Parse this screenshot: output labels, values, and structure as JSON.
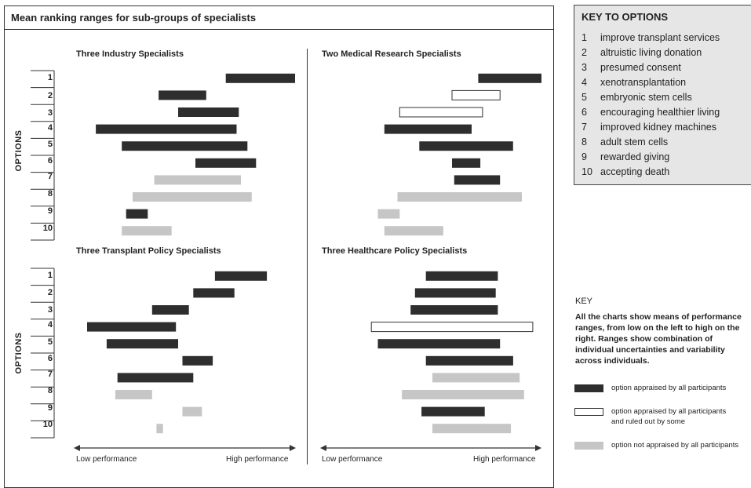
{
  "title": "Mean ranking ranges for sub-groups of specialists",
  "axis": {
    "options_label": "OPTIONS",
    "low": "Low performance",
    "high": "High performance"
  },
  "option_numbers": [
    "1",
    "2",
    "3",
    "4",
    "5",
    "6",
    "7",
    "8",
    "9",
    "10"
  ],
  "key_to_options": {
    "title": "KEY TO OPTIONS",
    "items": [
      {
        "num": "1",
        "label": "improve transplant services"
      },
      {
        "num": "2",
        "label": "altruistic living donation"
      },
      {
        "num": "3",
        "label": "presumed consent"
      },
      {
        "num": "4",
        "label": "xenotransplantation"
      },
      {
        "num": "5",
        "label": "embryonic stem cells"
      },
      {
        "num": "6",
        "label": "encouraging healthier living"
      },
      {
        "num": "7",
        "label": "improved kidney machines"
      },
      {
        "num": "8",
        "label": "adult stem cells"
      },
      {
        "num": "9",
        "label": "rewarded giving"
      },
      {
        "num": "10",
        "label": "accepting death"
      }
    ]
  },
  "legend": {
    "title": "KEY",
    "description": "All the charts show means of performance ranges, from low on the left to high on the right. Ranges show combination of individual uncertainties and variability across individuals.",
    "items": [
      {
        "style": "all",
        "line1": "option appraised by all participants",
        "line2": ""
      },
      {
        "style": "ruled_out",
        "line1": "option appraised by all participants",
        "line2": "and ruled out by some"
      },
      {
        "style": "not_all",
        "line1": "option not appraised by all participants",
        "line2": ""
      }
    ]
  },
  "colors": {
    "all": "#2e2e2e",
    "ruled_out": "#ffffff",
    "not_all": "#c6c6c6",
    "outline": "#333333"
  },
  "chart_data": [
    {
      "type": "range-bar",
      "title": "Three Industry Specialists",
      "x_range": [
        "Low performance",
        "High performance"
      ],
      "scale": [
        0,
        100
      ],
      "categories": [
        "1",
        "2",
        "3",
        "4",
        "5",
        "6",
        "7",
        "8",
        "9",
        "10"
      ],
      "ranges": [
        [
          68,
          100
        ],
        [
          37,
          59
        ],
        [
          46,
          74
        ],
        [
          8,
          73
        ],
        [
          20,
          78
        ],
        [
          54,
          82
        ],
        [
          35,
          75
        ],
        [
          25,
          80
        ],
        [
          22,
          32
        ],
        [
          20,
          43
        ]
      ],
      "styles": [
        "all",
        "all",
        "all",
        "all",
        "all",
        "all",
        "not_all",
        "not_all",
        "all",
        "not_all"
      ]
    },
    {
      "type": "range-bar",
      "title": "Two Medical Research Specialists",
      "x_range": [
        "Low performance",
        "High performance"
      ],
      "scale": [
        0,
        100
      ],
      "categories": [
        "1",
        "2",
        "3",
        "4",
        "5",
        "6",
        "7",
        "8",
        "9",
        "10"
      ],
      "ranges": [
        [
          71,
          100
        ],
        [
          59,
          81
        ],
        [
          35,
          73
        ],
        [
          28,
          68
        ],
        [
          44,
          87
        ],
        [
          59,
          72
        ],
        [
          60,
          81
        ],
        [
          34,
          91
        ],
        [
          25,
          35
        ],
        [
          28,
          55
        ]
      ],
      "styles": [
        "all",
        "ruled_out",
        "ruled_out",
        "all",
        "all",
        "all",
        "all",
        "not_all",
        "not_all",
        "not_all"
      ]
    },
    {
      "type": "range-bar",
      "title": "Three Transplant Policy Specialists",
      "x_range": [
        "Low performance",
        "High performance"
      ],
      "scale": [
        0,
        100
      ],
      "categories": [
        "1",
        "2",
        "3",
        "4",
        "5",
        "6",
        "7",
        "8",
        "9",
        "10"
      ],
      "ranges": [
        [
          63,
          87
        ],
        [
          53,
          72
        ],
        [
          34,
          51
        ],
        [
          4,
          45
        ],
        [
          13,
          46
        ],
        [
          48,
          62
        ],
        [
          18,
          53
        ],
        [
          17,
          34
        ],
        [
          48,
          57
        ],
        [
          36,
          39
        ]
      ],
      "styles": [
        "all",
        "all",
        "all",
        "all",
        "all",
        "all",
        "all",
        "not_all",
        "not_all",
        "not_all"
      ]
    },
    {
      "type": "range-bar",
      "title": "Three Healthcare Policy Specialists",
      "x_range": [
        "Low performance",
        "High performance"
      ],
      "scale": [
        0,
        100
      ],
      "categories": [
        "1",
        "2",
        "3",
        "4",
        "5",
        "6",
        "7",
        "8",
        "9",
        "10"
      ],
      "ranges": [
        [
          47,
          80
        ],
        [
          42,
          79
        ],
        [
          40,
          80
        ],
        [
          22,
          96
        ],
        [
          25,
          81
        ],
        [
          47,
          87
        ],
        [
          50,
          90
        ],
        [
          36,
          92
        ],
        [
          45,
          74
        ],
        [
          50,
          86
        ]
      ],
      "styles": [
        "all",
        "all",
        "all",
        "ruled_out",
        "all",
        "all",
        "not_all",
        "not_all",
        "all",
        "not_all"
      ]
    }
  ]
}
